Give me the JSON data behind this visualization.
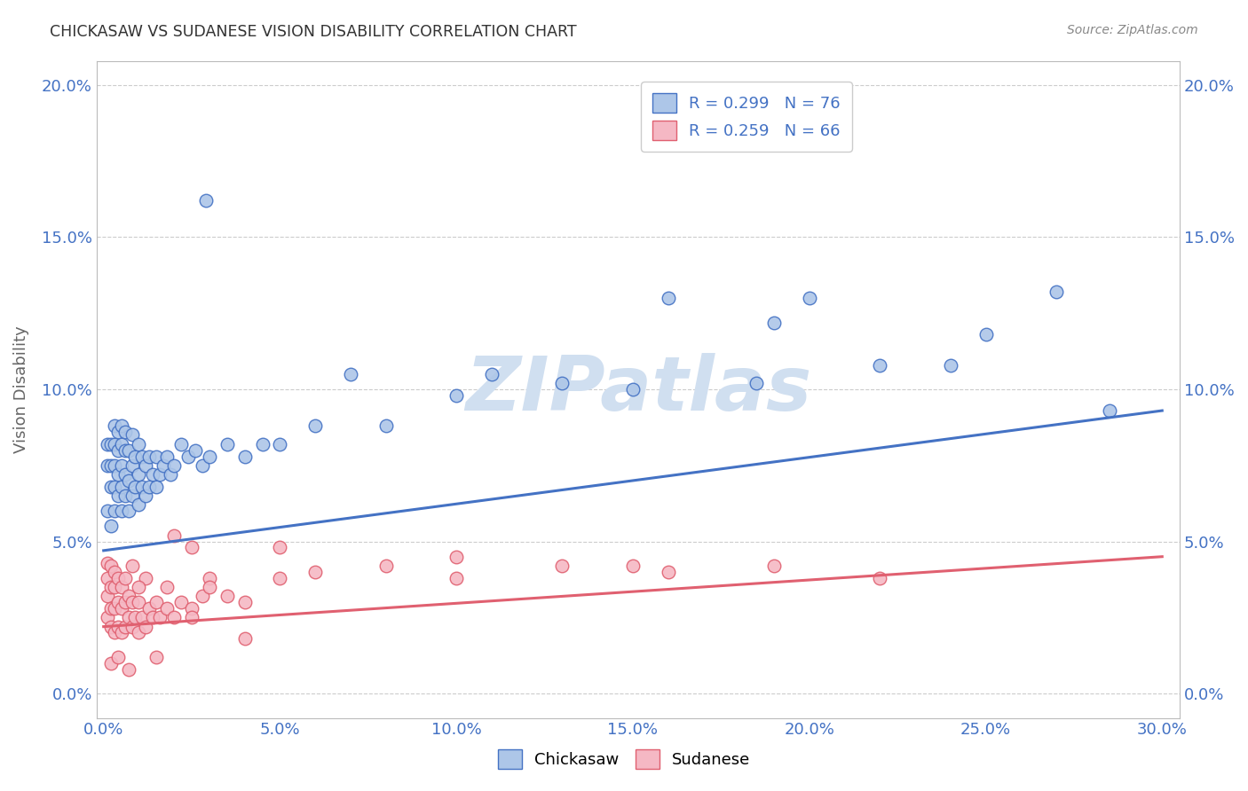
{
  "title": "CHICKASAW VS SUDANESE VISION DISABILITY CORRELATION CHART",
  "source": "Source: ZipAtlas.com",
  "xlabel_ticks": [
    "0.0%",
    "5.0%",
    "10.0%",
    "15.0%",
    "20.0%",
    "25.0%",
    "30.0%"
  ],
  "xlabel_vals": [
    0.0,
    0.05,
    0.1,
    0.15,
    0.2,
    0.25,
    0.3
  ],
  "ylabel_ticks": [
    "0.0%",
    "5.0%",
    "10.0%",
    "15.0%",
    "20.0%"
  ],
  "ylabel_vals": [
    0.0,
    0.05,
    0.1,
    0.15,
    0.2
  ],
  "ylabel_label": "Vision Disability",
  "xlim": [
    -0.002,
    0.305
  ],
  "ylim": [
    -0.008,
    0.208
  ],
  "legend_r1": "R = 0.299",
  "legend_n1": "N = 76",
  "legend_r2": "R = 0.259",
  "legend_n2": "N = 66",
  "blue_color": "#adc6e8",
  "pink_color": "#f5b8c4",
  "blue_line_color": "#4472c4",
  "pink_line_color": "#e06070",
  "title_color": "#333333",
  "axis_label_color": "#4472c4",
  "watermark_color": "#d0dff0",
  "blue_scatter_x": [
    0.001,
    0.001,
    0.001,
    0.002,
    0.002,
    0.002,
    0.002,
    0.003,
    0.003,
    0.003,
    0.003,
    0.003,
    0.004,
    0.004,
    0.004,
    0.004,
    0.005,
    0.005,
    0.005,
    0.005,
    0.005,
    0.006,
    0.006,
    0.006,
    0.006,
    0.007,
    0.007,
    0.007,
    0.008,
    0.008,
    0.008,
    0.009,
    0.009,
    0.01,
    0.01,
    0.01,
    0.011,
    0.011,
    0.012,
    0.012,
    0.013,
    0.013,
    0.014,
    0.015,
    0.015,
    0.016,
    0.017,
    0.018,
    0.019,
    0.02,
    0.022,
    0.024,
    0.026,
    0.028,
    0.03,
    0.035,
    0.04,
    0.045,
    0.05,
    0.06,
    0.07,
    0.08,
    0.1,
    0.11,
    0.13,
    0.15,
    0.16,
    0.185,
    0.19,
    0.2,
    0.22,
    0.24,
    0.25,
    0.27,
    0.285,
    0.029
  ],
  "blue_scatter_y": [
    0.06,
    0.075,
    0.082,
    0.055,
    0.068,
    0.075,
    0.082,
    0.06,
    0.068,
    0.075,
    0.082,
    0.088,
    0.065,
    0.072,
    0.08,
    0.086,
    0.06,
    0.068,
    0.075,
    0.082,
    0.088,
    0.065,
    0.072,
    0.08,
    0.086,
    0.06,
    0.07,
    0.08,
    0.065,
    0.075,
    0.085,
    0.068,
    0.078,
    0.062,
    0.072,
    0.082,
    0.068,
    0.078,
    0.065,
    0.075,
    0.068,
    0.078,
    0.072,
    0.068,
    0.078,
    0.072,
    0.075,
    0.078,
    0.072,
    0.075,
    0.082,
    0.078,
    0.08,
    0.075,
    0.078,
    0.082,
    0.078,
    0.082,
    0.082,
    0.088,
    0.105,
    0.088,
    0.098,
    0.105,
    0.102,
    0.1,
    0.13,
    0.102,
    0.122,
    0.13,
    0.108,
    0.108,
    0.118,
    0.132,
    0.093,
    0.162
  ],
  "pink_scatter_x": [
    0.001,
    0.001,
    0.001,
    0.001,
    0.002,
    0.002,
    0.002,
    0.002,
    0.003,
    0.003,
    0.003,
    0.003,
    0.004,
    0.004,
    0.004,
    0.005,
    0.005,
    0.005,
    0.006,
    0.006,
    0.006,
    0.007,
    0.007,
    0.008,
    0.008,
    0.009,
    0.01,
    0.01,
    0.011,
    0.012,
    0.013,
    0.014,
    0.015,
    0.016,
    0.018,
    0.02,
    0.022,
    0.025,
    0.028,
    0.03,
    0.035,
    0.04,
    0.05,
    0.06,
    0.08,
    0.1,
    0.13,
    0.16,
    0.19,
    0.22,
    0.025,
    0.03,
    0.012,
    0.018,
    0.008,
    0.01,
    0.02,
    0.05,
    0.1,
    0.15,
    0.002,
    0.004,
    0.007,
    0.015,
    0.025,
    0.04
  ],
  "pink_scatter_y": [
    0.025,
    0.032,
    0.038,
    0.043,
    0.022,
    0.028,
    0.035,
    0.042,
    0.02,
    0.028,
    0.035,
    0.04,
    0.022,
    0.03,
    0.038,
    0.02,
    0.028,
    0.035,
    0.022,
    0.03,
    0.038,
    0.025,
    0.032,
    0.022,
    0.03,
    0.025,
    0.02,
    0.03,
    0.025,
    0.022,
    0.028,
    0.025,
    0.03,
    0.025,
    0.028,
    0.025,
    0.03,
    0.028,
    0.032,
    0.038,
    0.032,
    0.03,
    0.038,
    0.04,
    0.042,
    0.038,
    0.042,
    0.04,
    0.042,
    0.038,
    0.048,
    0.035,
    0.038,
    0.035,
    0.042,
    0.035,
    0.052,
    0.048,
    0.045,
    0.042,
    0.01,
    0.012,
    0.008,
    0.012,
    0.025,
    0.018
  ],
  "blue_line_x": [
    0.0,
    0.3
  ],
  "blue_line_y": [
    0.047,
    0.093
  ],
  "pink_line_x": [
    0.0,
    0.3
  ],
  "pink_line_y": [
    0.022,
    0.045
  ]
}
